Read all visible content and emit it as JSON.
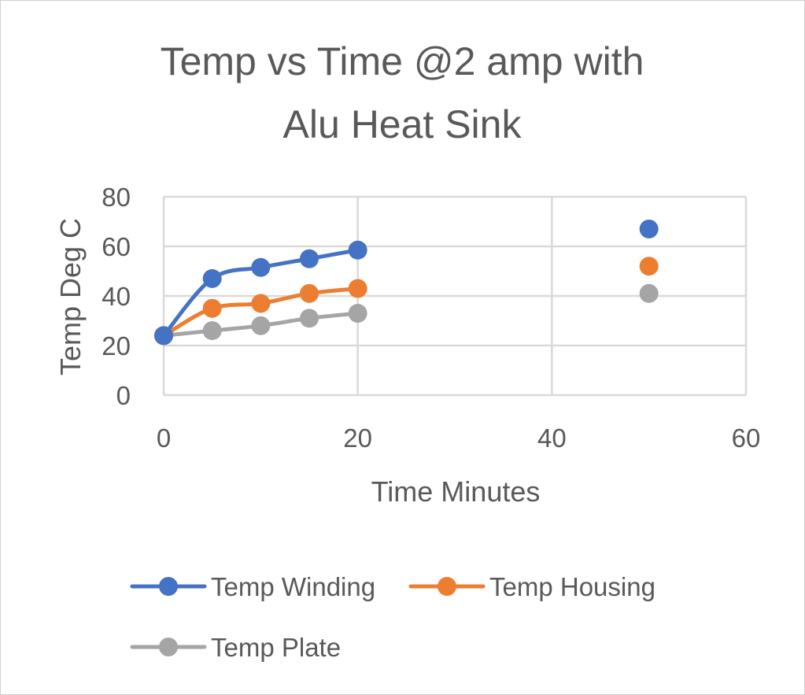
{
  "chart_data": {
    "type": "scatter",
    "title_lines": [
      "Temp vs Time @2 amp with",
      "Alu Heat Sink"
    ],
    "xlabel": "Time Minutes",
    "ylabel": "Temp Deg C",
    "xlim": [
      0,
      60
    ],
    "ylim": [
      0,
      80
    ],
    "x_ticks": [
      0,
      20,
      40,
      60
    ],
    "y_ticks": [
      0,
      20,
      40,
      60,
      80
    ],
    "x_tick_labels": [
      "0",
      "20",
      "40",
      "60"
    ],
    "y_tick_labels": [
      "0",
      "20",
      "40",
      "60",
      "80"
    ],
    "grid": true,
    "legend_position": "bottom",
    "series": [
      {
        "name": "Temp Winding",
        "color": "#4472c4",
        "points": [
          [
            0,
            24
          ],
          [
            5,
            47
          ],
          [
            10,
            51.5
          ],
          [
            15,
            55
          ],
          [
            20,
            58.5
          ],
          [
            50,
            67
          ]
        ],
        "line_points": 5
      },
      {
        "name": "Temp Housing",
        "color": "#ed7d31",
        "points": [
          [
            0,
            24
          ],
          [
            5,
            35
          ],
          [
            10,
            37
          ],
          [
            15,
            41
          ],
          [
            20,
            43
          ],
          [
            50,
            52
          ]
        ],
        "line_points": 5
      },
      {
        "name": "Temp Plate",
        "color": "#a5a5a5",
        "points": [
          [
            0,
            24
          ],
          [
            5,
            26
          ],
          [
            10,
            28
          ],
          [
            15,
            31
          ],
          [
            20,
            33
          ],
          [
            50,
            41
          ]
        ],
        "line_points": 5
      }
    ]
  }
}
